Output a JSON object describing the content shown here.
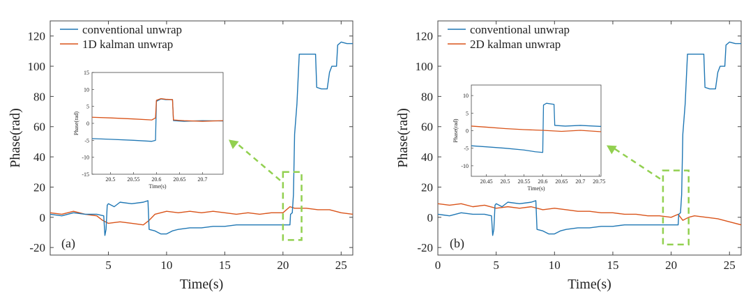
{
  "colors": {
    "conventional": "#1f77b4",
    "kalman": "#d95319",
    "highlight": "#92d050",
    "axis": "#444444"
  },
  "chart_data": [
    {
      "type": "line",
      "panel_label": "(a)",
      "xlabel": "Time(s)",
      "ylabel": "Phase(rad)",
      "xlim": [
        0,
        26
      ],
      "ylim": [
        -25,
        130
      ],
      "xticks": [
        5,
        10,
        15,
        20,
        25
      ],
      "yticks": [
        -20,
        0,
        20,
        40,
        60,
        80,
        100,
        120
      ],
      "legend_position": "top-left",
      "series": [
        {
          "name": "conventional unwrap",
          "color_key": "conventional",
          "x": [
            0.0,
            1.0,
            2.0,
            3.0,
            4.0,
            4.6,
            4.7,
            4.8,
            4.9,
            5.0,
            5.5,
            6.0,
            7.0,
            8.0,
            8.4,
            8.5,
            9.0,
            9.5,
            10.0,
            10.5,
            11.0,
            12.0,
            13.0,
            14.0,
            15.0,
            16.0,
            17.0,
            18.0,
            19.0,
            19.8,
            20.0,
            20.4,
            20.6,
            20.65,
            20.8,
            20.9,
            21.0,
            21.2,
            21.4,
            22.0,
            22.8,
            22.9,
            23.3,
            23.8,
            24.0,
            24.2,
            24.6,
            24.7,
            25.0,
            25.5,
            26.0
          ],
          "y": [
            2,
            1,
            3,
            2,
            2,
            1,
            -12,
            -8,
            8,
            9,
            7,
            10,
            9,
            10,
            11,
            -8,
            -9,
            -11,
            -11,
            -9,
            -8,
            -7,
            -7,
            -6,
            -6,
            -5,
            -5,
            -5,
            -5,
            -5,
            -5,
            -5,
            -5,
            2,
            3,
            15,
            55,
            75,
            108,
            108,
            108,
            86,
            85,
            85,
            96,
            100,
            100,
            114,
            116,
            115,
            115
          ]
        },
        {
          "name": "1D kalman unwrap",
          "color_key": "kalman",
          "x": [
            0,
            1,
            2,
            3,
            4,
            4.5,
            5,
            6,
            7,
            8,
            8.5,
            9,
            10,
            11,
            12,
            13,
            14,
            15,
            16,
            17,
            18,
            19,
            20,
            20.6,
            21,
            22,
            23,
            24,
            25,
            26
          ],
          "y": [
            3,
            2,
            4,
            2,
            1,
            -2,
            -4,
            -3,
            -4,
            -5,
            -2,
            2,
            4,
            3,
            4,
            3,
            4,
            3,
            2,
            3,
            2,
            3,
            3,
            7,
            6,
            6,
            5,
            5,
            3,
            2
          ]
        }
      ],
      "inset": {
        "xlabel": "Time(s)",
        "ylabel": "Phase(rad)",
        "xlim": [
          20.46,
          20.745
        ],
        "ylim": [
          -15,
          15
        ],
        "xticks": [
          20.5,
          20.55,
          20.6,
          20.65,
          20.7
        ],
        "xtick_labels": [
          "20.5",
          "20.55",
          "20.6",
          "20.65",
          "20.7"
        ],
        "yticks": [
          -15,
          -10,
          -5,
          0,
          5,
          10,
          15
        ],
        "series": [
          {
            "name": "conventional unwrap",
            "color_key": "conventional",
            "x": [
              20.46,
              20.5,
              20.55,
              20.59,
              20.598,
              20.6,
              20.61,
              20.62,
              20.635,
              20.637,
              20.66,
              20.7,
              20.745
            ],
            "y": [
              -4.5,
              -4.7,
              -5.0,
              -5.3,
              -5.0,
              6.5,
              7.2,
              7.0,
              7.0,
              0.8,
              0.6,
              0.8,
              0.7
            ]
          },
          {
            "name": "1D kalman unwrap",
            "color_key": "kalman",
            "x": [
              20.46,
              20.5,
              20.55,
              20.59,
              20.598,
              20.6,
              20.61,
              20.62,
              20.635,
              20.637,
              20.66,
              20.7,
              20.745
            ],
            "y": [
              1.8,
              1.6,
              1.3,
              1.0,
              1.6,
              6.8,
              7.3,
              7.1,
              7.0,
              1.0,
              0.8,
              0.6,
              0.8
            ]
          }
        ]
      },
      "highlight_box": {
        "x": [
          20.0,
          21.6
        ],
        "y": [
          -15,
          30
        ]
      }
    },
    {
      "type": "line",
      "panel_label": "(b)",
      "xlabel": "Time(s)",
      "ylabel": "Phase(rad)",
      "xlim": [
        0,
        26
      ],
      "ylim": [
        -25,
        130
      ],
      "xticks": [
        0,
        5,
        10,
        15,
        20,
        25
      ],
      "yticks": [
        -20,
        0,
        20,
        40,
        60,
        80,
        100,
        120
      ],
      "legend_position": "top-left",
      "series": [
        {
          "name": "conventional unwrap",
          "color_key": "conventional",
          "x": [
            0.0,
            1.0,
            2.0,
            3.0,
            4.0,
            4.6,
            4.7,
            4.8,
            4.9,
            5.0,
            5.5,
            6.0,
            7.0,
            8.0,
            8.4,
            8.5,
            9.0,
            9.5,
            10.0,
            10.5,
            11.0,
            12.0,
            13.0,
            14.0,
            15.0,
            16.0,
            17.0,
            18.0,
            19.0,
            19.8,
            20.0,
            20.4,
            20.6,
            20.65,
            20.8,
            20.9,
            21.0,
            21.2,
            21.4,
            22.0,
            22.8,
            22.9,
            23.3,
            23.8,
            24.0,
            24.2,
            24.6,
            24.7,
            25.0,
            25.5,
            26.0
          ],
          "y": [
            2,
            1,
            3,
            2,
            2,
            1,
            -12,
            -8,
            8,
            9,
            7,
            10,
            9,
            10,
            11,
            -8,
            -9,
            -11,
            -11,
            -9,
            -8,
            -7,
            -7,
            -6,
            -6,
            -5,
            -5,
            -5,
            -5,
            -5,
            -5,
            -5,
            -5,
            2,
            3,
            15,
            55,
            75,
            108,
            108,
            108,
            86,
            85,
            85,
            96,
            100,
            100,
            114,
            116,
            115,
            115
          ]
        },
        {
          "name": "2D kalman unwrap",
          "color_key": "kalman",
          "x": [
            0,
            1,
            2,
            3,
            4,
            5,
            6,
            7,
            8,
            9,
            10,
            11,
            12,
            13,
            14,
            15,
            16,
            17,
            18,
            19,
            20,
            20.6,
            21,
            21.5,
            22,
            23,
            24,
            25,
            26
          ],
          "y": [
            9,
            8,
            9,
            7,
            8,
            6,
            7,
            6,
            7,
            5,
            6,
            5,
            4,
            4,
            3,
            3,
            2,
            2,
            1,
            1,
            0,
            2,
            -2,
            0,
            1,
            0,
            -1,
            -3,
            -5
          ]
        }
      ],
      "inset": {
        "xlabel": "Time(s)",
        "ylabel": "Phase(rad)",
        "xlim": [
          20.41,
          20.755
        ],
        "ylim": [
          -13,
          13
        ],
        "xticks": [
          20.45,
          20.5,
          20.55,
          20.6,
          20.65,
          20.7,
          20.75
        ],
        "xtick_labels": [
          "20.45",
          "20.5",
          "20.55",
          "20.6",
          "20.65",
          "20.7",
          "20.75"
        ],
        "yticks": [
          -10,
          -5,
          0,
          5,
          10
        ],
        "series": [
          {
            "name": "conventional unwrap",
            "color_key": "conventional",
            "x": [
              20.41,
              20.45,
              20.5,
              20.55,
              20.58,
              20.6,
              20.602,
              20.61,
              20.63,
              20.632,
              20.66,
              20.7,
              20.755
            ],
            "y": [
              -4.3,
              -4.6,
              -5.0,
              -5.5,
              -6.0,
              -6.2,
              7.3,
              7.8,
              7.5,
              1.5,
              1.3,
              1.5,
              1.2
            ]
          },
          {
            "name": "2D kalman unwrap",
            "color_key": "kalman",
            "x": [
              20.41,
              20.45,
              20.5,
              20.55,
              20.6,
              20.65,
              20.7,
              20.755
            ],
            "y": [
              1.3,
              1.0,
              0.6,
              0.3,
              0.1,
              -0.2,
              0.1,
              -0.3
            ]
          }
        ]
      },
      "highlight_box": {
        "x": [
          19.3,
          21.5
        ],
        "y": [
          -18,
          31
        ]
      }
    }
  ]
}
